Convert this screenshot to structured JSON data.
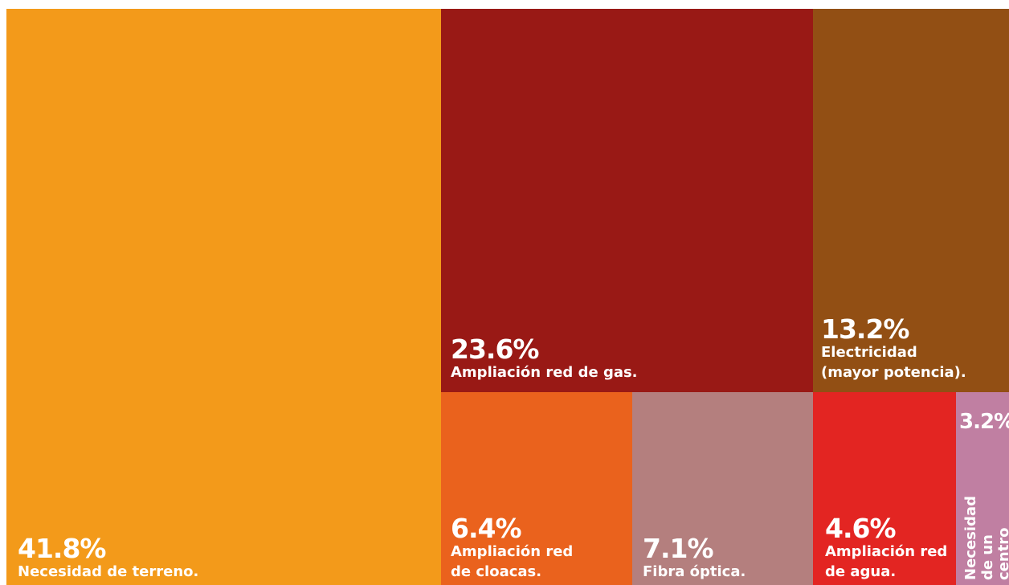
{
  "chart_data": {
    "type": "treemap",
    "items": [
      {
        "value": 41.8,
        "percent_label": "41.8%",
        "label": "Necesidad de terreno.",
        "color": "#F39A1A"
      },
      {
        "value": 23.6,
        "percent_label": "23.6%",
        "label": "Ampliación red de gas.",
        "color": "#991915"
      },
      {
        "value": 13.2,
        "percent_label": "13.2%",
        "label": "Electricidad\n(mayor potencia).",
        "color": "#924F14"
      },
      {
        "value": 6.4,
        "percent_label": "6.4%",
        "label": "Ampliación red\nde cloacas.",
        "color": "#EA621D"
      },
      {
        "value": 7.1,
        "percent_label": "7.1%",
        "label": "Fibra óptica.",
        "color": "#B47F7E"
      },
      {
        "value": 4.6,
        "percent_label": "4.6%",
        "label": "Ampliación red\nde agua.",
        "color": "#E32522"
      },
      {
        "value": 3.2,
        "percent_label": "3.2%",
        "label": "Necesidad de un\ncentro logístico",
        "color": "#C07FA2"
      }
    ]
  }
}
